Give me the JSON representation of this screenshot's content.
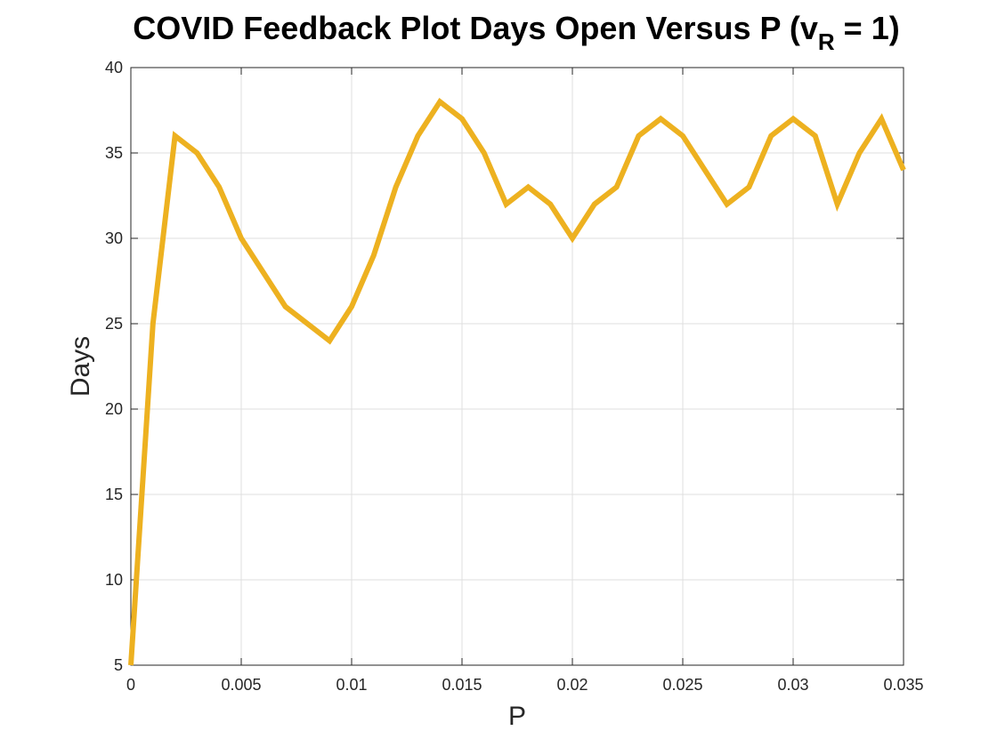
{
  "chart_data": {
    "type": "line",
    "title_main": "COVID Feedback Plot Days Open Versus P (v",
    "title_sub": "R",
    "title_tail": " = 1)",
    "xlabel": "P",
    "ylabel": "Days",
    "xlim": [
      0,
      0.035
    ],
    "ylim": [
      5,
      40
    ],
    "grid": true,
    "line_color": "#EDB120",
    "x_ticks": [
      0,
      0.005,
      0.01,
      0.015,
      0.02,
      0.025,
      0.03,
      0.035
    ],
    "x_tick_labels": [
      "0",
      "0.005",
      "0.01",
      "0.015",
      "0.02",
      "0.025",
      "0.03",
      "0.035"
    ],
    "y_ticks": [
      5,
      10,
      15,
      20,
      25,
      30,
      35,
      40
    ],
    "y_tick_labels": [
      "5",
      "10",
      "15",
      "20",
      "25",
      "30",
      "35",
      "40"
    ],
    "series": [
      {
        "x": [
          0,
          0.001,
          0.002,
          0.003,
          0.004,
          0.005,
          0.006,
          0.007,
          0.008,
          0.009,
          0.01,
          0.011,
          0.012,
          0.013,
          0.014,
          0.015,
          0.016,
          0.017,
          0.018,
          0.019,
          0.02,
          0.021,
          0.022,
          0.023,
          0.024,
          0.025,
          0.026,
          0.027,
          0.028,
          0.029,
          0.03,
          0.031,
          0.032,
          0.033,
          0.034,
          0.035
        ],
        "y": [
          5,
          25,
          36,
          35,
          33,
          30,
          28,
          26,
          25,
          24,
          26,
          29,
          33,
          36,
          38,
          37,
          35,
          32,
          33,
          32,
          30,
          32,
          33,
          36,
          37,
          36,
          34,
          32,
          33,
          36,
          37,
          36,
          32,
          35,
          37,
          34
        ]
      }
    ]
  }
}
